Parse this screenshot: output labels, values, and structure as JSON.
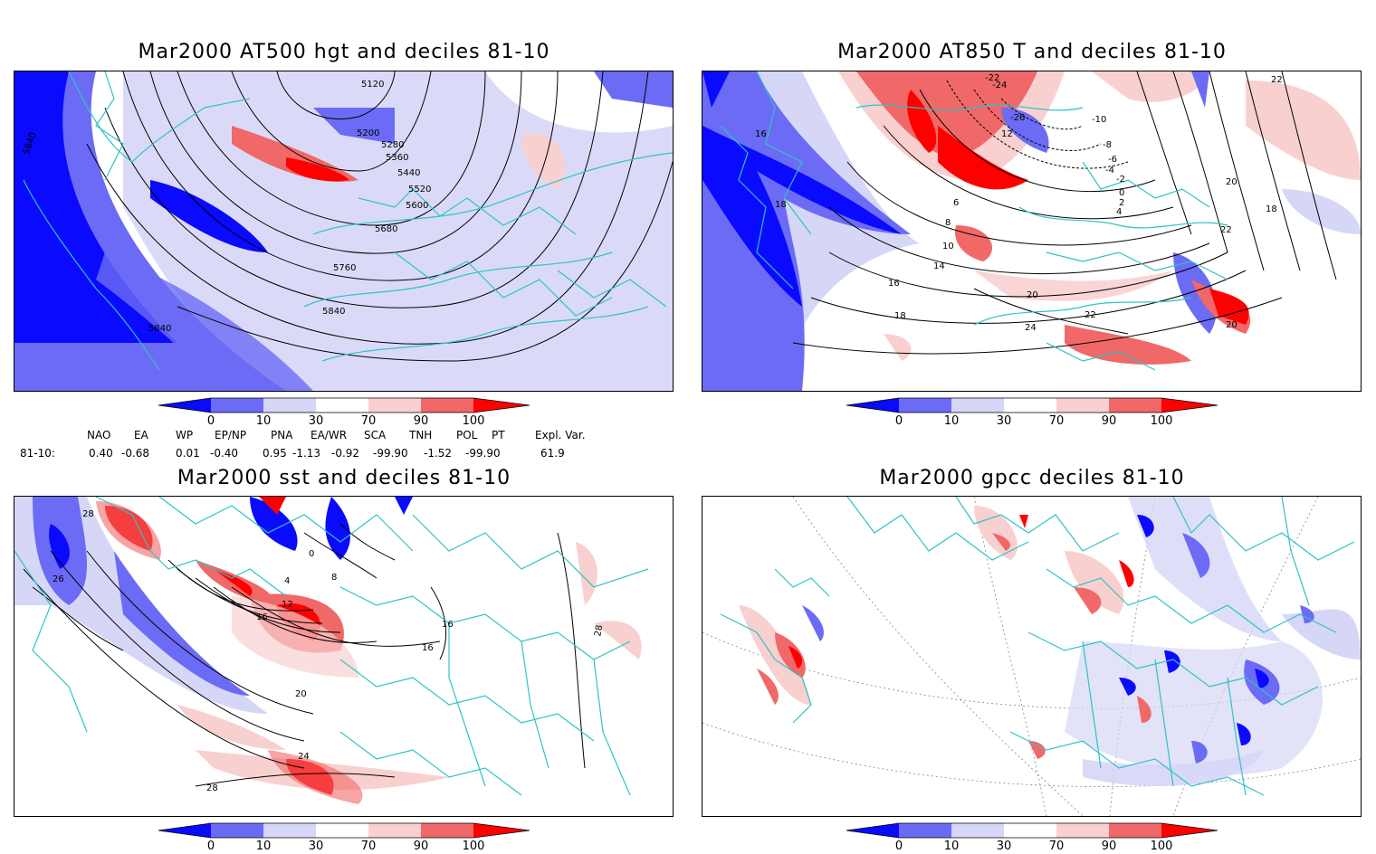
{
  "panels": [
    {
      "title": "Mar2000 AT500 hgt and deciles 81-10",
      "contour_labels": [
        "5120",
        "5200",
        "5280",
        "5360",
        "5440",
        "5520",
        "5600",
        "5680",
        "5760",
        "5840",
        "5840",
        "5840"
      ]
    },
    {
      "title": "Mar2000 AT850 T and deciles 81-10",
      "contour_labels": [
        "-22",
        "-24",
        "-26",
        "-10",
        "-8",
        "-6",
        "-4",
        "-2",
        "0",
        "2",
        "4",
        "6",
        "8",
        "10",
        "12",
        "14",
        "16",
        "18",
        "20",
        "22",
        "24",
        "20",
        "18",
        "16",
        "22",
        "22",
        "20",
        "18"
      ]
    },
    {
      "title": "Mar2000 sst and deciles 81-10",
      "contour_labels": [
        "28",
        "26",
        "0",
        "4",
        "8",
        "12",
        "16",
        "20",
        "24",
        "28",
        "16",
        "16",
        "28"
      ]
    },
    {
      "title": "Mar2000 gpcc deciles 81-10",
      "contour_labels": []
    }
  ],
  "colorbar": {
    "ticks": [
      "0",
      "10",
      "30",
      "70",
      "90",
      "100"
    ],
    "colors": [
      "#0a0aff",
      "#6b6bf5",
      "#d6d6f7",
      "#ffffff",
      "#f9d0d0",
      "#f06868",
      "#ff0000"
    ]
  },
  "indices": {
    "headers": [
      "NAO",
      "EA",
      "WP",
      "EP/NP",
      "PNA",
      "EA/WR",
      "SCA",
      "TNH",
      "POL",
      "PT",
      "Expl. Var."
    ],
    "period": "81-10:",
    "values": [
      "0.40",
      "-0.68",
      "0.01",
      "-0.40",
      "0.95",
      "-1.13",
      "-0.92",
      "-99.90",
      "-1.52",
      "-99.90",
      "61.9"
    ]
  },
  "colors": {
    "coast": "#2ec4c4",
    "contour": "#000000",
    "frame": "#000000"
  }
}
